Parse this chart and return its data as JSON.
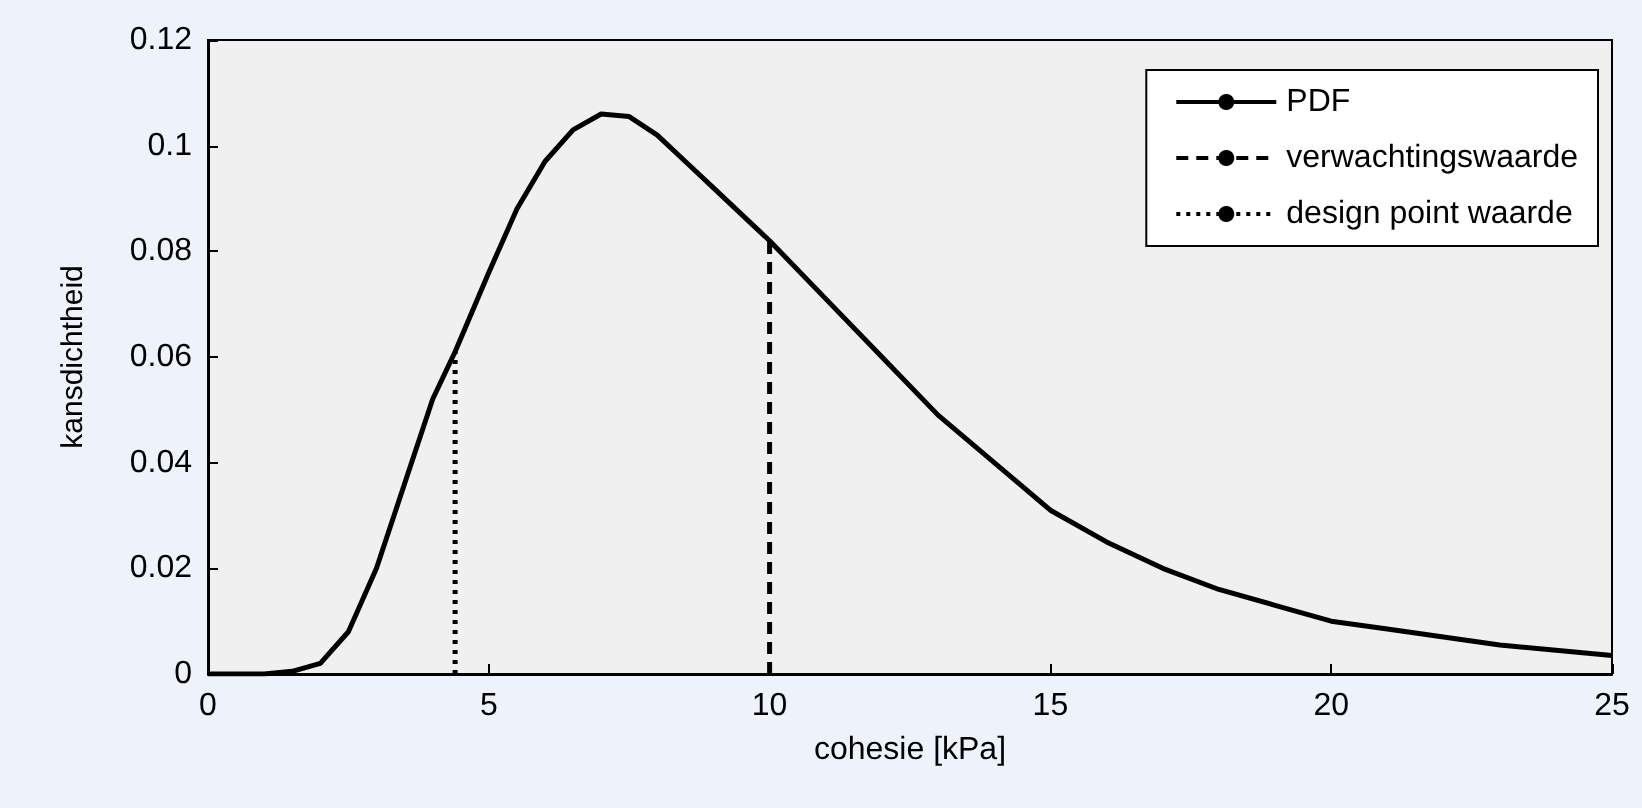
{
  "chart_data": {
    "type": "line",
    "xlabel": "cohesie [kPa]",
    "ylabel": "kansdichtheid",
    "xlim": [
      0,
      25
    ],
    "xticks": [
      0,
      5,
      10,
      15,
      20,
      25
    ],
    "ylim": [
      0,
      0.12
    ],
    "yticks": [
      0,
      0.02,
      0.04,
      0.06,
      0.08,
      0.1,
      0.12
    ],
    "grid": false,
    "legend": "top right",
    "marker": "none",
    "series": [
      {
        "name": "PDF",
        "color": "#000000",
        "line_style": "solid",
        "x": [
          0,
          0.5,
          1,
          1.5,
          2,
          2.5,
          3,
          3.5,
          4,
          4.4,
          5,
          5.5,
          6,
          6.5,
          7,
          7.5,
          8,
          8.5,
          9,
          9.5,
          10,
          11,
          12,
          13,
          14,
          15,
          16,
          17,
          18,
          19,
          20,
          21,
          22,
          23,
          24,
          25
        ],
        "values": [
          0,
          0,
          0,
          0.0005,
          0.002,
          0.008,
          0.02,
          0.036,
          0.052,
          0.061,
          0.076,
          0.088,
          0.097,
          0.103,
          0.106,
          0.1055,
          0.102,
          0.097,
          0.092,
          0.087,
          0.082,
          0.071,
          0.06,
          0.049,
          0.04,
          0.031,
          0.025,
          0.02,
          0.016,
          0.013,
          0.01,
          0.0085,
          0.007,
          0.0055,
          0.0045,
          0.0035
        ]
      },
      {
        "name": "verwachtingswaarde",
        "color": "#000000",
        "line_style": "dashed",
        "x": [
          10,
          10
        ],
        "values": [
          0,
          0.082
        ]
      },
      {
        "name": "design point waarde",
        "color": "#000000",
        "line_style": "dotted",
        "x": [
          4.4,
          4.4
        ],
        "values": [
          0,
          0.061
        ]
      }
    ]
  }
}
